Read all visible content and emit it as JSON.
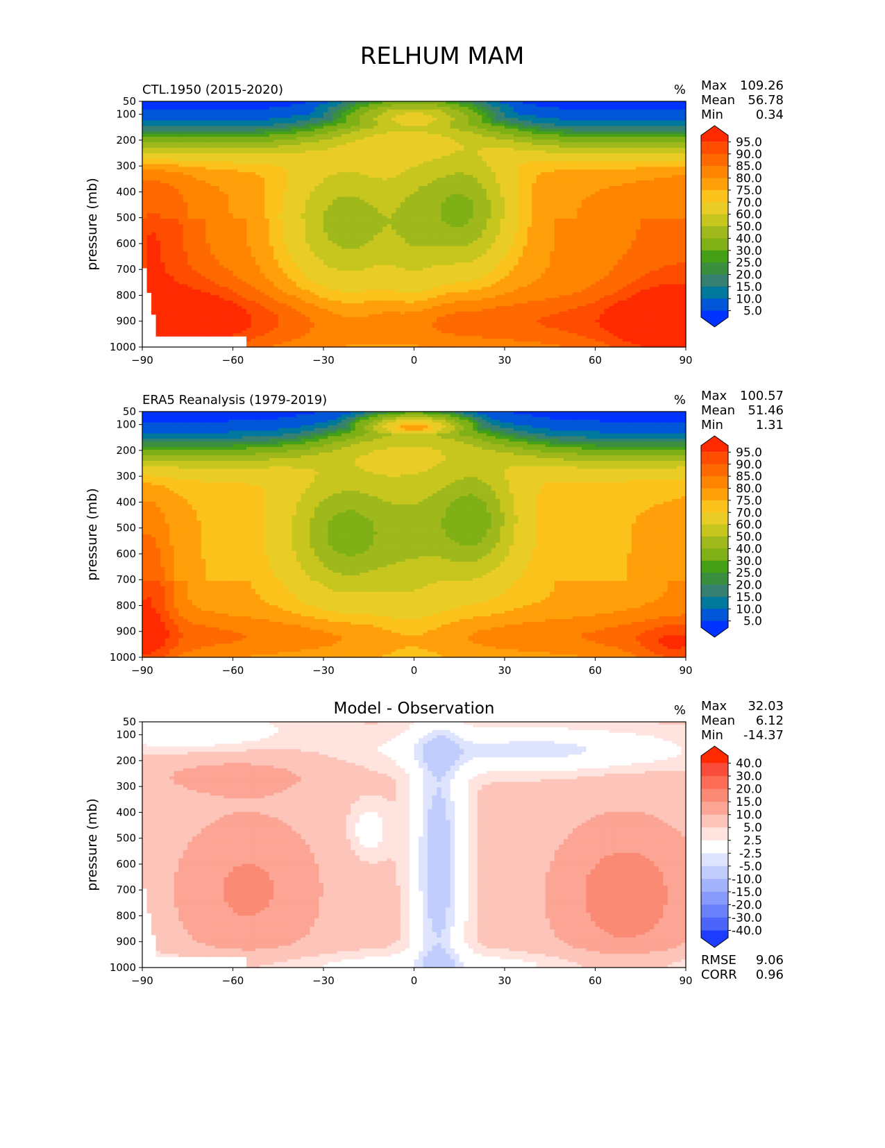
{
  "figure_title": "RELHUM MAM",
  "chart_data": [
    {
      "type": "contour",
      "id": "model",
      "title_left": "CTL.1950 (2015-2020)",
      "title_center": "",
      "units": "%",
      "ylabel": "pressure (mb)",
      "xlabel": "",
      "xlim": [
        -90,
        90
      ],
      "ylim": [
        1000,
        50
      ],
      "x_ticks": [
        "−90",
        "−60",
        "−30",
        "0",
        "30",
        "60",
        "90"
      ],
      "y_ticks": [
        "50",
        "100",
        "200",
        "300",
        "400",
        "500",
        "600",
        "700",
        "800",
        "900",
        "1000"
      ],
      "stats": [
        {
          "label": "Max",
          "value": "109.26"
        },
        {
          "label": "Mean",
          "value": "56.78"
        },
        {
          "label": "Min",
          "value": "0.34"
        }
      ],
      "colorbar_labels": [
        "95.0",
        "90.0",
        "85.0",
        "80.0",
        "75.0",
        "70.0",
        "60.0",
        "50.0",
        "40.0",
        "30.0",
        "25.0",
        "20.0",
        "15.0",
        "10.0",
        "5.0"
      ],
      "colorbar_colors": [
        "#ff2a00",
        "#ff4d00",
        "#ff6a00",
        "#ff8500",
        "#ff9f0a",
        "#fbc21b",
        "#e9cd26",
        "#c7c61f",
        "#9fb81b",
        "#7fb016",
        "#45a015",
        "#3a8f3e",
        "#358071",
        "#00789c",
        "#0056d6",
        "#0033ff"
      ],
      "field": "unimodal_subtropical_dry"
    },
    {
      "type": "contour",
      "id": "obs",
      "title_left": "ERA5 Reanalysis (1979-2019)",
      "title_center": "",
      "units": "%",
      "ylabel": "pressure (mb)",
      "xlabel": "",
      "xlim": [
        -90,
        90
      ],
      "ylim": [
        1000,
        50
      ],
      "x_ticks": [
        "−90",
        "−60",
        "−30",
        "0",
        "30",
        "60",
        "90"
      ],
      "y_ticks": [
        "50",
        "100",
        "200",
        "300",
        "400",
        "500",
        "600",
        "700",
        "800",
        "900",
        "1000"
      ],
      "stats": [
        {
          "label": "Max",
          "value": "100.57"
        },
        {
          "label": "Mean",
          "value": "51.46"
        },
        {
          "label": "Min",
          "value": "1.31"
        }
      ],
      "colorbar_labels": [
        "95.0",
        "90.0",
        "85.0",
        "80.0",
        "75.0",
        "70.0",
        "60.0",
        "50.0",
        "40.0",
        "30.0",
        "25.0",
        "20.0",
        "15.0",
        "10.0",
        "5.0"
      ],
      "colorbar_colors": [
        "#ff2a00",
        "#ff4d00",
        "#ff6a00",
        "#ff8500",
        "#ff9f0a",
        "#fbc21b",
        "#e9cd26",
        "#c7c61f",
        "#9fb81b",
        "#7fb016",
        "#45a015",
        "#3a8f3e",
        "#358071",
        "#00789c",
        "#0056d6",
        "#0033ff"
      ],
      "field": "obs_subtropical_dry"
    },
    {
      "type": "contour",
      "id": "diff",
      "title_left": "",
      "title_center": "Model - Observation",
      "units": "%",
      "ylabel": "pressure (mb)",
      "xlabel": "",
      "xlim": [
        -90,
        90
      ],
      "ylim": [
        1000,
        50
      ],
      "x_ticks": [
        "−90",
        "−60",
        "−30",
        "0",
        "30",
        "60",
        "90"
      ],
      "y_ticks": [
        "50",
        "100",
        "200",
        "300",
        "400",
        "500",
        "600",
        "700",
        "800",
        "900",
        "1000"
      ],
      "stats": [
        {
          "label": "Max",
          "value": "32.03"
        },
        {
          "label": "Mean",
          "value": "6.12"
        },
        {
          "label": "Min",
          "value": "-14.37"
        }
      ],
      "extra_stats": [
        {
          "label": "RMSE",
          "value": "9.06"
        },
        {
          "label": "CORR",
          "value": "0.96"
        }
      ],
      "colorbar_labels": [
        "40.0",
        "30.0",
        "20.0",
        "15.0",
        "10.0",
        "5.0",
        "2.5",
        "-2.5",
        "-5.0",
        "-10.0",
        "-15.0",
        "-20.0",
        "-30.0",
        "-40.0"
      ],
      "colorbar_colors": [
        "#ff2a00",
        "#fa4c3a",
        "#fb6b55",
        "#fb8a75",
        "#fca595",
        "#fdc5ba",
        "#fee3de",
        "#ffffff",
        "#dee4fd",
        "#c0cdfd",
        "#a2b3fb",
        "#8799fa",
        "#6a7ffa",
        "#4d64fb",
        "#1e3cff"
      ],
      "field": "difference"
    }
  ]
}
